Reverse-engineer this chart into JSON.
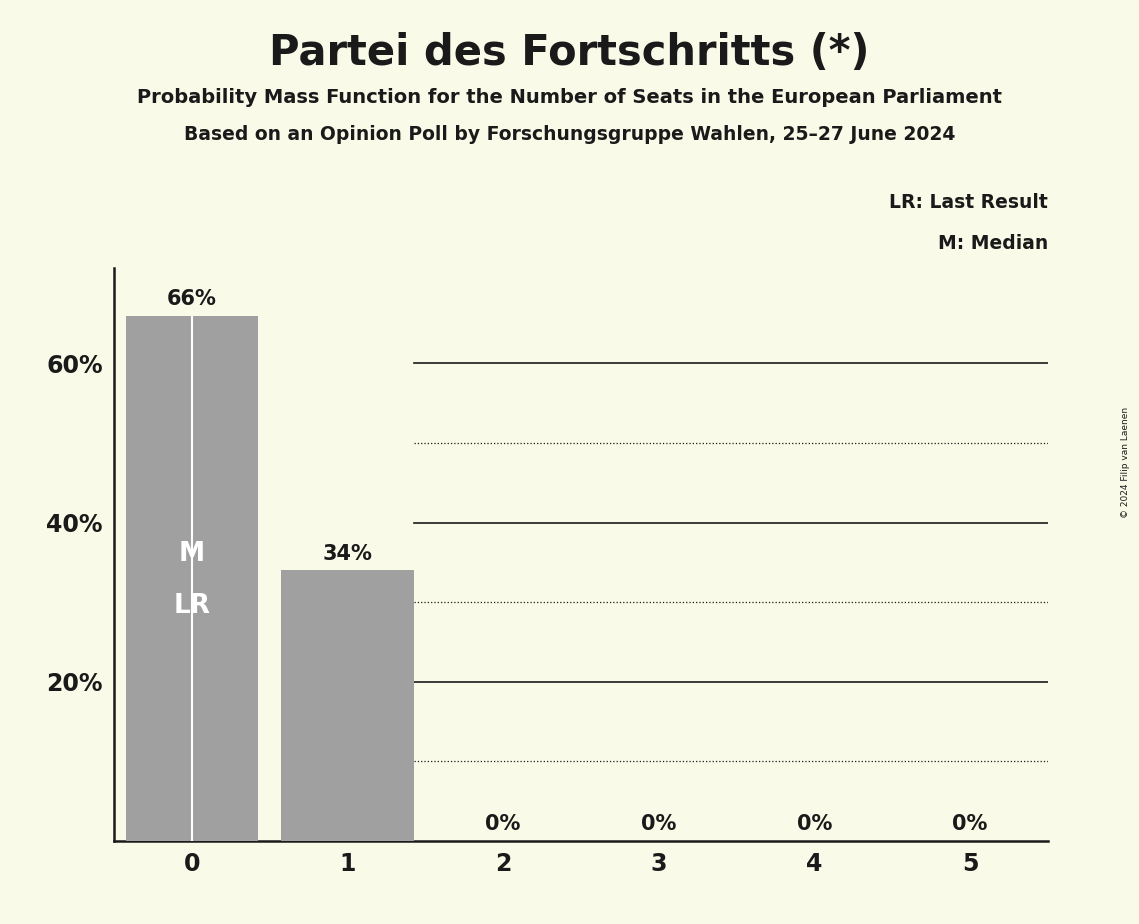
{
  "title": "Partei des Fortschritts (*)",
  "subtitle1": "Probability Mass Function for the Number of Seats in the European Parliament",
  "subtitle2": "Based on an Opinion Poll by Forschungsgruppe Wahlen, 25–27 June 2024",
  "copyright": "© 2024 Filip van Laenen",
  "categories": [
    0,
    1,
    2,
    3,
    4,
    5
  ],
  "values": [
    0.66,
    0.34,
    0.0,
    0.0,
    0.0,
    0.0
  ],
  "bar_color": "#a0a0a0",
  "median_seat": 0,
  "last_result_seat": 0,
  "background_color": "#fafae8",
  "text_color": "#1a1a1a",
  "bar_inner_color": "#ffffff",
  "ylim_max": 0.72,
  "grid_solid_values": [
    0.2,
    0.4,
    0.6
  ],
  "grid_dotted_values": [
    0.1,
    0.3,
    0.5
  ],
  "legend_lr": "LR: Last Result",
  "legend_m": "M: Median"
}
